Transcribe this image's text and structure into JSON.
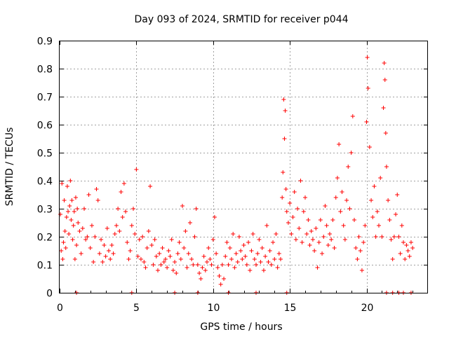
{
  "chart_data": {
    "type": "scatter",
    "title": "Day 093 of 2024, SRMTID for receiver p044",
    "xlabel": "GPS time / hours",
    "ylabel": "SRMTID / TECUs",
    "xlim": [
      0,
      24
    ],
    "ylim": [
      0,
      0.9
    ],
    "xticks": [
      0,
      5,
      10,
      15,
      20
    ],
    "xtick_labels": [
      "0",
      "5",
      "10",
      "15",
      "20"
    ],
    "yticks": [
      0,
      0.1,
      0.2,
      0.3,
      0.4,
      0.5,
      0.6,
      0.7,
      0.8,
      0.9
    ],
    "ytick_labels": [
      "0",
      "0.1",
      "0.2",
      "0.3",
      "0.4",
      "0.5",
      "0.6",
      "0.7",
      "0.8",
      "0.9"
    ],
    "grid": true,
    "marker": "+",
    "color": "#ff0000",
    "series": [
      {
        "name": "SRMTID",
        "points": [
          [
            0.05,
            0.28
          ],
          [
            0.1,
            0.15
          ],
          [
            0.15,
            0.39
          ],
          [
            0.2,
            0.12
          ],
          [
            0.25,
            0.18
          ],
          [
            0.3,
            0.33
          ],
          [
            0.35,
            0.22
          ],
          [
            0.4,
            0.16
          ],
          [
            0.45,
            0.27
          ],
          [
            0.5,
            0.38
          ],
          [
            0.55,
            0.29
          ],
          [
            0.6,
            0.21
          ],
          [
            0.65,
            0.31
          ],
          [
            0.7,
            0.4
          ],
          [
            0.75,
            0.26
          ],
          [
            0.8,
            0.33
          ],
          [
            0.85,
            0.19
          ],
          [
            0.9,
            0.24
          ],
          [
            0.95,
            0.29
          ],
          [
            1.0,
            0.12
          ],
          [
            1.05,
            0.34
          ],
          [
            1.1,
            0.17
          ],
          [
            1.15,
            0.3
          ],
          [
            1.2,
            0.25
          ],
          [
            1.3,
            0.22
          ],
          [
            1.4,
            0.14
          ],
          [
            1.5,
            0.23
          ],
          [
            1.6,
            0.3
          ],
          [
            1.7,
            0.19
          ],
          [
            1.8,
            0.2
          ],
          [
            1.9,
            0.35
          ],
          [
            2.0,
            0.16
          ],
          [
            2.1,
            0.24
          ],
          [
            2.2,
            0.11
          ],
          [
            2.3,
            0.2
          ],
          [
            2.4,
            0.37
          ],
          [
            2.5,
            0.33
          ],
          [
            2.6,
            0.14
          ],
          [
            2.7,
            0.19
          ],
          [
            2.8,
            0.11
          ],
          [
            2.9,
            0.17
          ],
          [
            3.0,
            0.13
          ],
          [
            3.1,
            0.23
          ],
          [
            3.2,
            0.15
          ],
          [
            3.3,
            0.12
          ],
          [
            3.4,
            0.17
          ],
          [
            3.5,
            0.14
          ],
          [
            3.6,
            0.21
          ],
          [
            3.7,
            0.24
          ],
          [
            3.8,
            0.3
          ],
          [
            3.9,
            0.22
          ],
          [
            4.0,
            0.36
          ],
          [
            4.1,
            0.27
          ],
          [
            4.2,
            0.39
          ],
          [
            4.3,
            0.29
          ],
          [
            4.4,
            0.18
          ],
          [
            4.5,
            0.12
          ],
          [
            4.6,
            0.15
          ],
          [
            4.7,
            0.24
          ],
          [
            4.8,
            0.3
          ],
          [
            4.9,
            0.21
          ],
          [
            5.0,
            0.44
          ],
          [
            5.1,
            0.13
          ],
          [
            5.2,
            0.19
          ],
          [
            5.3,
            0.12
          ],
          [
            5.4,
            0.2
          ],
          [
            5.5,
            0.11
          ],
          [
            5.6,
            0.09
          ],
          [
            5.7,
            0.16
          ],
          [
            5.8,
            0.22
          ],
          [
            5.9,
            0.38
          ],
          [
            6.0,
            0.17
          ],
          [
            6.1,
            0.1
          ],
          [
            6.2,
            0.19
          ],
          [
            6.3,
            0.13
          ],
          [
            6.4,
            0.08
          ],
          [
            6.5,
            0.14
          ],
          [
            6.6,
            0.1
          ],
          [
            6.7,
            0.16
          ],
          [
            6.8,
            0.11
          ],
          [
            6.9,
            0.12
          ],
          [
            7.0,
            0.09
          ],
          [
            7.1,
            0.15
          ],
          [
            7.2,
            0.13
          ],
          [
            7.3,
            0.19
          ],
          [
            7.4,
            0.08
          ],
          [
            7.5,
            0.11
          ],
          [
            7.6,
            0.07
          ],
          [
            7.7,
            0.14
          ],
          [
            7.8,
            0.18
          ],
          [
            7.9,
            0.12
          ],
          [
            8.0,
            0.31
          ],
          [
            8.1,
            0.16
          ],
          [
            8.2,
            0.22
          ],
          [
            8.3,
            0.09
          ],
          [
            8.4,
            0.14
          ],
          [
            8.5,
            0.25
          ],
          [
            8.6,
            0.12
          ],
          [
            8.7,
            0.1
          ],
          [
            8.8,
            0.2
          ],
          [
            8.9,
            0.3
          ],
          [
            9.0,
            0.1
          ],
          [
            9.1,
            0.07
          ],
          [
            9.2,
            0.05
          ],
          [
            9.3,
            0.09
          ],
          [
            9.4,
            0.13
          ],
          [
            9.5,
            0.08
          ],
          [
            9.6,
            0.11
          ],
          [
            9.7,
            0.16
          ],
          [
            9.8,
            0.12
          ],
          [
            9.9,
            0.1
          ],
          [
            10.0,
            0.19
          ],
          [
            10.1,
            0.27
          ],
          [
            10.2,
            0.14
          ],
          [
            10.3,
            0.09
          ],
          [
            10.4,
            0.06
          ],
          [
            10.5,
            0.03
          ],
          [
            10.6,
            0.1
          ],
          [
            10.7,
            0.05
          ],
          [
            10.8,
            0.13
          ],
          [
            10.9,
            0.18
          ],
          [
            11.0,
            0.1
          ],
          [
            11.1,
            0.16
          ],
          [
            11.2,
            0.12
          ],
          [
            11.3,
            0.21
          ],
          [
            11.4,
            0.09
          ],
          [
            11.5,
            0.14
          ],
          [
            11.6,
            0.11
          ],
          [
            11.7,
            0.2
          ],
          [
            11.8,
            0.15
          ],
          [
            11.9,
            0.12
          ],
          [
            12.0,
            0.17
          ],
          [
            12.1,
            0.13
          ],
          [
            12.2,
            0.1
          ],
          [
            12.3,
            0.18
          ],
          [
            12.4,
            0.08
          ],
          [
            12.5,
            0.15
          ],
          [
            12.6,
            0.21
          ],
          [
            12.7,
            0.12
          ],
          [
            12.8,
            0.1
          ],
          [
            12.9,
            0.14
          ],
          [
            13.0,
            0.19
          ],
          [
            13.1,
            0.11
          ],
          [
            13.2,
            0.16
          ],
          [
            13.3,
            0.08
          ],
          [
            13.4,
            0.13
          ],
          [
            13.5,
            0.24
          ],
          [
            13.6,
            0.11
          ],
          [
            13.7,
            0.15
          ],
          [
            13.8,
            0.1
          ],
          [
            13.9,
            0.18
          ],
          [
            14.0,
            0.12
          ],
          [
            14.1,
            0.21
          ],
          [
            14.2,
            0.09
          ],
          [
            14.3,
            0.14
          ],
          [
            14.4,
            0.12
          ],
          [
            14.5,
            0.34
          ],
          [
            14.55,
            0.43
          ],
          [
            14.6,
            0.69
          ],
          [
            14.65,
            0.55
          ],
          [
            14.7,
            0.65
          ],
          [
            14.75,
            0.37
          ],
          [
            14.8,
            0.29
          ],
          [
            14.9,
            0.25
          ],
          [
            15.0,
            0.32
          ],
          [
            15.1,
            0.21
          ],
          [
            15.2,
            0.27
          ],
          [
            15.3,
            0.36
          ],
          [
            15.4,
            0.19
          ],
          [
            15.5,
            0.3
          ],
          [
            15.6,
            0.23
          ],
          [
            15.7,
            0.4
          ],
          [
            15.8,
            0.18
          ],
          [
            15.9,
            0.29
          ],
          [
            16.0,
            0.34
          ],
          [
            16.1,
            0.21
          ],
          [
            16.2,
            0.26
          ],
          [
            16.3,
            0.17
          ],
          [
            16.4,
            0.22
          ],
          [
            16.5,
            0.19
          ],
          [
            16.6,
            0.15
          ],
          [
            16.7,
            0.23
          ],
          [
            16.8,
            0.09
          ],
          [
            16.9,
            0.18
          ],
          [
            17.0,
            0.26
          ],
          [
            17.1,
            0.14
          ],
          [
            17.2,
            0.2
          ],
          [
            17.3,
            0.31
          ],
          [
            17.4,
            0.24
          ],
          [
            17.5,
            0.17
          ],
          [
            17.6,
            0.21
          ],
          [
            17.7,
            0.19
          ],
          [
            17.8,
            0.26
          ],
          [
            17.9,
            0.16
          ],
          [
            18.0,
            0.34
          ],
          [
            18.1,
            0.41
          ],
          [
            18.2,
            0.53
          ],
          [
            18.3,
            0.29
          ],
          [
            18.4,
            0.36
          ],
          [
            18.5,
            0.24
          ],
          [
            18.6,
            0.19
          ],
          [
            18.7,
            0.33
          ],
          [
            18.8,
            0.45
          ],
          [
            18.9,
            0.3
          ],
          [
            19.0,
            0.5
          ],
          [
            19.1,
            0.63
          ],
          [
            19.2,
            0.26
          ],
          [
            19.3,
            0.16
          ],
          [
            19.4,
            0.12
          ],
          [
            19.5,
            0.2
          ],
          [
            19.6,
            0.15
          ],
          [
            19.7,
            0.08
          ],
          [
            19.8,
            0.18
          ],
          [
            19.9,
            0.24
          ],
          [
            20.0,
            0.61
          ],
          [
            20.05,
            0.84
          ],
          [
            20.1,
            0.73
          ],
          [
            20.2,
            0.52
          ],
          [
            20.3,
            0.33
          ],
          [
            20.4,
            0.27
          ],
          [
            20.5,
            0.38
          ],
          [
            20.6,
            0.2
          ],
          [
            20.7,
            0.29
          ],
          [
            20.8,
            0.24
          ],
          [
            20.9,
            0.41
          ],
          [
            21.0,
            0.2
          ],
          [
            21.1,
            0.66
          ],
          [
            21.15,
            0.82
          ],
          [
            21.2,
            0.76
          ],
          [
            21.25,
            0.57
          ],
          [
            21.3,
            0.45
          ],
          [
            21.4,
            0.33
          ],
          [
            21.5,
            0.26
          ],
          [
            21.6,
            0.19
          ],
          [
            21.7,
            0.12
          ],
          [
            21.8,
            0.2
          ],
          [
            21.9,
            0.28
          ],
          [
            22.0,
            0.35
          ],
          [
            22.1,
            0.2
          ],
          [
            22.2,
            0.14
          ],
          [
            22.3,
            0.24
          ],
          [
            22.4,
            0.18
          ],
          [
            22.5,
            0.12
          ],
          [
            22.6,
            0.17
          ],
          [
            22.7,
            0.15
          ],
          [
            22.8,
            0.13
          ],
          [
            22.9,
            0.18
          ],
          [
            23.0,
            0.16
          ]
        ]
      }
    ],
    "zero_points_x": [
      1.1,
      4.7,
      7.5,
      9.0,
      11.0,
      12.8,
      14.8,
      21.3,
      21.7,
      22.1,
      22.4,
      22.9
    ]
  }
}
